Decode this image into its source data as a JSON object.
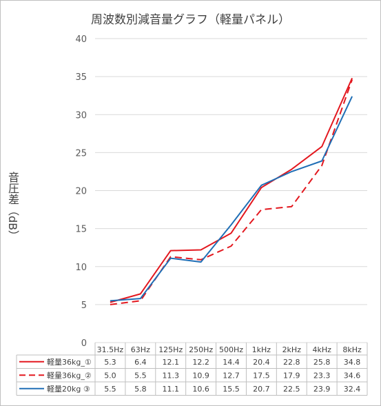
{
  "chart_data": {
    "type": "line",
    "title": "周波数別減音量グラフ（軽量パネル）",
    "ylabel": "音圧差（dB）",
    "xlabel": "",
    "ylim": [
      0,
      40
    ],
    "yticks": [
      "0",
      "5",
      "10",
      "15",
      "20",
      "25",
      "30",
      "35",
      "40"
    ],
    "grid": "horizontal",
    "legend": "data-table-below",
    "categories": [
      "31.5Hz",
      "63Hz",
      "125Hz",
      "250Hz",
      "500Hz",
      "1kHz",
      "2kHz",
      "4kHz",
      "8kHz"
    ],
    "series": [
      {
        "name": "軽量36kg_①",
        "color": "#e3171e",
        "dash": "solid",
        "values": [
          5.3,
          6.4,
          12.1,
          12.2,
          14.4,
          20.4,
          22.8,
          25.8,
          34.8
        ],
        "labels": [
          "5.3",
          "6.4",
          "12.1",
          "12.2",
          "14.4",
          "20.4",
          "22.8",
          "25.8",
          "34.8"
        ]
      },
      {
        "name": "軽量36kg_②",
        "color": "#e3171e",
        "dash": "dashed",
        "values": [
          5.0,
          5.5,
          11.3,
          10.9,
          12.7,
          17.5,
          17.9,
          23.3,
          34.6
        ],
        "labels": [
          "5.0",
          "5.5",
          "11.3",
          "10.9",
          "12.7",
          "17.5",
          "17.9",
          "23.3",
          "34.6"
        ]
      },
      {
        "name": "軽量20kg ③",
        "color": "#1f6eb5",
        "dash": "solid",
        "values": [
          5.5,
          5.8,
          11.1,
          10.6,
          15.5,
          20.7,
          22.5,
          23.9,
          32.4
        ],
        "labels": [
          "5.5",
          "5.8",
          "11.1",
          "10.6",
          "15.5",
          "20.7",
          "22.5",
          "23.9",
          "32.4"
        ]
      }
    ]
  }
}
